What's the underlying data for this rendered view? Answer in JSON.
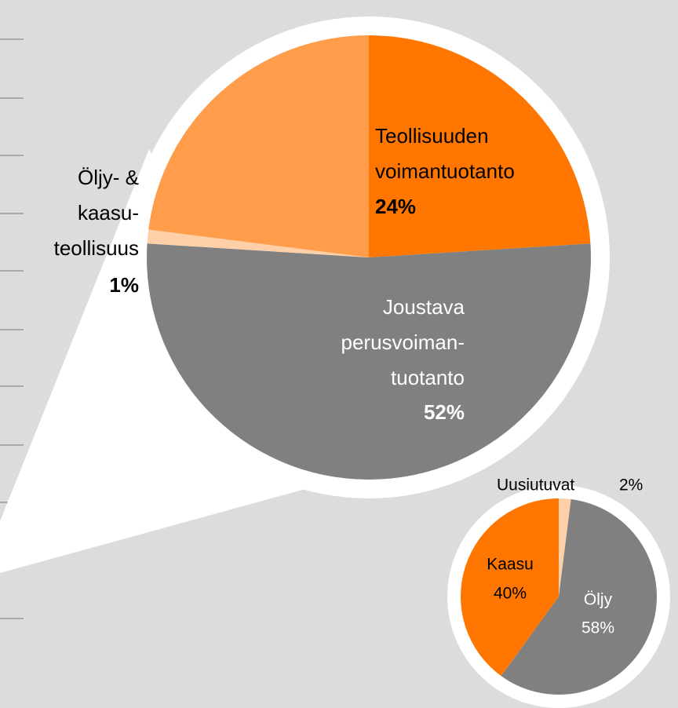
{
  "chart_data": [
    {
      "type": "pie",
      "categories": [
        "Teollisuuden\nvoimantuotanto",
        "Joustava\nperusvoiman-\ntuotanto",
        "Öljy- &\nkaasu-\nteollisuus",
        null
      ],
      "values": [
        24,
        52,
        1,
        23
      ],
      "value_labels": [
        "24%",
        "52%",
        "1%",
        null
      ],
      "colors": [
        "#ff7700",
        "#808080",
        "#ffd0a8",
        "#ff9d4a"
      ]
    },
    {
      "type": "pie",
      "categories": [
        "Uusiutuvat",
        "Öljy",
        "Kaasu"
      ],
      "values": [
        2,
        58,
        40
      ],
      "value_labels": [
        "2%",
        "58%",
        "40%"
      ],
      "colors": [
        "#ffd0a8",
        "#808080",
        "#ff7700"
      ]
    }
  ]
}
